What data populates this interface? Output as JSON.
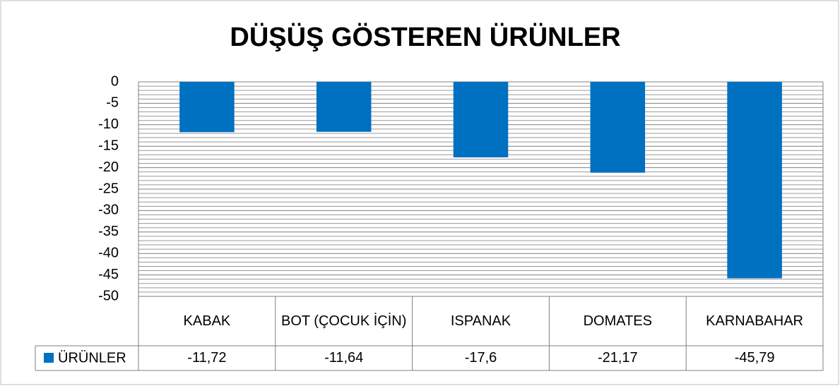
{
  "chart_data": {
    "type": "bar",
    "title": "DÜŞÜŞ GÖSTEREN ÜRÜNLER",
    "categories": [
      "KABAK",
      "BOT (ÇOCUK İÇİN)",
      "ISPANAK",
      "DOMATES",
      "KARNABAHAR"
    ],
    "series": [
      {
        "name": "ÜRÜNLER",
        "color": "#0070c0",
        "values": [
          -11.72,
          -11.64,
          -17.6,
          -21.17,
          -45.79
        ],
        "value_labels": [
          "-11,72",
          "-11,64",
          "-17,6",
          "-21,17",
          "-45,79"
        ]
      }
    ],
    "ylim": [
      -50,
      0
    ],
    "yticks": [
      0,
      -5,
      -10,
      -15,
      -20,
      -25,
      -30,
      -35,
      -40,
      -45,
      -50
    ],
    "grid": true,
    "minor_grid": true
  }
}
